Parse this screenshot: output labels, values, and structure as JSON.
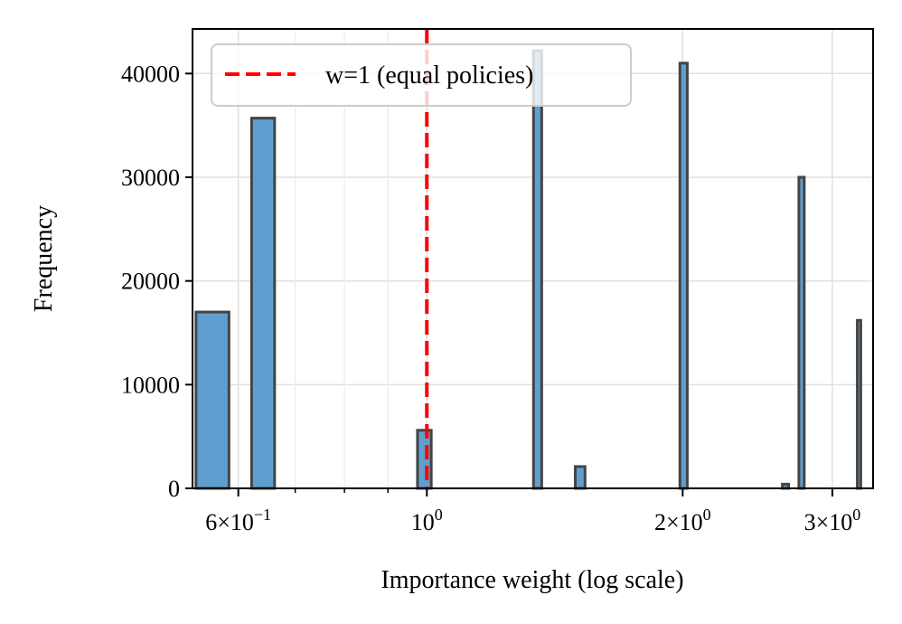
{
  "chart_data": {
    "type": "histogram",
    "title": "",
    "xlabel": "Importance weight (log scale)",
    "ylabel": "Frequency",
    "xscale": "log",
    "xlim": [
      0.53,
      3.35
    ],
    "ylim": [
      0,
      44300
    ],
    "grid": true,
    "bar_color": "#5f9fcf",
    "bar_edge_color": "#444444",
    "bins": [
      {
        "x0": 0.535,
        "x1": 0.585,
        "count": 17000
      },
      {
        "x0": 0.622,
        "x1": 0.662,
        "count": 35700
      },
      {
        "x0": 0.975,
        "x1": 1.012,
        "count": 5600
      },
      {
        "x0": 1.335,
        "x1": 1.365,
        "count": 42200
      },
      {
        "x0": 1.495,
        "x1": 1.535,
        "count": 2100
      },
      {
        "x0": 1.985,
        "x1": 2.025,
        "count": 41000
      },
      {
        "x0": 2.62,
        "x1": 2.665,
        "count": 400
      },
      {
        "x0": 2.74,
        "x1": 2.78,
        "count": 30000
      },
      {
        "x0": 3.21,
        "x1": 3.24,
        "count": 16200
      }
    ],
    "reference_line": {
      "x": 1,
      "color": "#ff0000",
      "style": "dashed",
      "label": "w=1 (equal policies)"
    },
    "legend": {
      "position": "top-left",
      "entries": [
        "w=1 (equal policies)"
      ]
    },
    "y_ticks": [
      {
        "value": 0,
        "label": "0"
      },
      {
        "value": 10000,
        "label": "10000"
      },
      {
        "value": 20000,
        "label": "20000"
      },
      {
        "value": 30000,
        "label": "30000"
      },
      {
        "value": 40000,
        "label": "40000"
      }
    ],
    "x_major_ticks": [
      {
        "value": 0.6,
        "base": "6×10",
        "exp": "−1"
      },
      {
        "value": 1,
        "base": "10",
        "exp": "0"
      },
      {
        "value": 2,
        "base": "2×10",
        "exp": "0"
      },
      {
        "value": 3,
        "base": "3×10",
        "exp": "0"
      }
    ],
    "x_minor_ticks": [
      0.7,
      0.8,
      0.9
    ]
  }
}
